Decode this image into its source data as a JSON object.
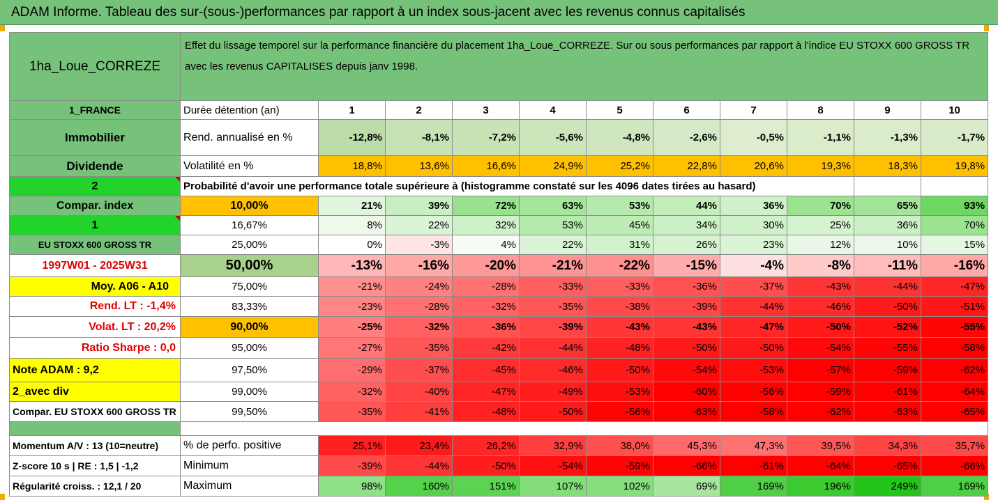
{
  "banner": "ADAM Informe. Tableau des sur-(sous-)performances par rapport à un index sous-jacent avec les revenus connus capitalisés",
  "header": {
    "fund": "1ha_Loue_CORREZE",
    "description": "Effet du lissage temporel sur la performance financière du placement 1ha_Loue_CORREZE. Sur ou sous performances par rapport à l'indice EU STOXX 600 GROSS TR avec les revenus CAPITALISES depuis janv 1998."
  },
  "side": {
    "country": "1_FRANCE",
    "category": "Immobilier",
    "dividend": "Dividende",
    "num2": "2",
    "compar_index": "Compar. index",
    "num1": "1",
    "index_name": "EU STOXX 600 GROSS TR",
    "period": "1997W01 - 2025W31",
    "moy": "Moy. A06 - A10",
    "rend_lt": "Rend. LT :   -1,4%",
    "volat_lt": "Volat. LT :   20,2%",
    "sharpe": "Ratio Sharpe :   0,0",
    "note": "Note ADAM : 9,2",
    "avec_div": "2_avec div",
    "compar_index2": "Compar. EU STOXX 600 GROSS TR",
    "momentum": "Momentum A/V : 13 (10=neutre)",
    "zscore": "Z-score 10 s  |  RE : 1,5  |  -1,2",
    "regularite": "Régularité croiss. : 12,1 / 20"
  },
  "labels": {
    "duree": "Durée détention (an)",
    "rend": "Rend. annualisé en %",
    "volat": "Volatilité en %",
    "proba": "Probabilité d'avoir une performance totale supérieure à (histogramme constaté sur les 4096 dates tirées au hasard)",
    "perf_pos": "% de perfo. positive",
    "minimum": "Minimum",
    "maximum": "Maximum"
  },
  "years": [
    "1",
    "2",
    "3",
    "4",
    "5",
    "6",
    "7",
    "8",
    "9",
    "10"
  ],
  "rend": [
    "-12,8%",
    "-8,1%",
    "-7,2%",
    "-5,6%",
    "-4,8%",
    "-2,6%",
    "-0,5%",
    "-1,1%",
    "-1,3%",
    "-1,7%"
  ],
  "volat": [
    "18,8%",
    "13,6%",
    "16,6%",
    "24,9%",
    "25,2%",
    "22,8%",
    "20,6%",
    "19,3%",
    "18,3%",
    "19,8%"
  ],
  "proba_rows": [
    {
      "pct": "10,00%",
      "values": [
        "21%",
        "39%",
        "72%",
        "63%",
        "53%",
        "44%",
        "36%",
        "70%",
        "65%",
        "93%"
      ]
    },
    {
      "pct": "16,67%",
      "values": [
        "8%",
        "22%",
        "32%",
        "53%",
        "45%",
        "34%",
        "30%",
        "25%",
        "36%",
        "70%"
      ]
    },
    {
      "pct": "25,00%",
      "values": [
        "0%",
        "-3%",
        "4%",
        "22%",
        "31%",
        "26%",
        "23%",
        "12%",
        "10%",
        "15%"
      ]
    },
    {
      "pct": "50,00%",
      "values": [
        "-13%",
        "-16%",
        "-20%",
        "-21%",
        "-22%",
        "-15%",
        "-4%",
        "-8%",
        "-11%",
        "-16%"
      ]
    },
    {
      "pct": "75,00%",
      "values": [
        "-21%",
        "-24%",
        "-28%",
        "-33%",
        "-33%",
        "-36%",
        "-37%",
        "-43%",
        "-44%",
        "-47%"
      ]
    },
    {
      "pct": "83,33%",
      "values": [
        "-23%",
        "-28%",
        "-32%",
        "-35%",
        "-38%",
        "-39%",
        "-44%",
        "-46%",
        "-50%",
        "-51%"
      ]
    },
    {
      "pct": "90,00%",
      "values": [
        "-25%",
        "-32%",
        "-36%",
        "-39%",
        "-43%",
        "-43%",
        "-47%",
        "-50%",
        "-52%",
        "-55%"
      ]
    },
    {
      "pct": "95,00%",
      "values": [
        "-27%",
        "-35%",
        "-42%",
        "-44%",
        "-48%",
        "-50%",
        "-50%",
        "-54%",
        "-55%",
        "-58%"
      ]
    },
    {
      "pct": "97,50%",
      "values": [
        "-29%",
        "-37%",
        "-45%",
        "-46%",
        "-50%",
        "-54%",
        "-53%",
        "-57%",
        "-59%",
        "-62%"
      ]
    },
    {
      "pct": "99,00%",
      "values": [
        "-32%",
        "-40%",
        "-47%",
        "-49%",
        "-53%",
        "-60%",
        "-56%",
        "-59%",
        "-61%",
        "-64%"
      ]
    },
    {
      "pct": "99,50%",
      "values": [
        "-35%",
        "-41%",
        "-48%",
        "-50%",
        "-56%",
        "-63%",
        "-58%",
        "-62%",
        "-63%",
        "-65%"
      ]
    }
  ],
  "perf_pos": [
    "25,1%",
    "23,4%",
    "26,2%",
    "32,9%",
    "38,0%",
    "45,3%",
    "47,3%",
    "39,5%",
    "34,3%",
    "35,7%"
  ],
  "minimum": [
    "-39%",
    "-44%",
    "-50%",
    "-54%",
    "-59%",
    "-66%",
    "-61%",
    "-64%",
    "-65%",
    "-66%"
  ],
  "maximum": [
    "98%",
    "160%",
    "151%",
    "107%",
    "102%",
    "69%",
    "169%",
    "196%",
    "249%",
    "169%"
  ],
  "colors": {
    "green": "#77c27a",
    "bright_green": "#22d32c",
    "orange": "#ffc000",
    "yellow": "#ffff00",
    "red": "#ff0000",
    "label_red": "#e00000"
  }
}
